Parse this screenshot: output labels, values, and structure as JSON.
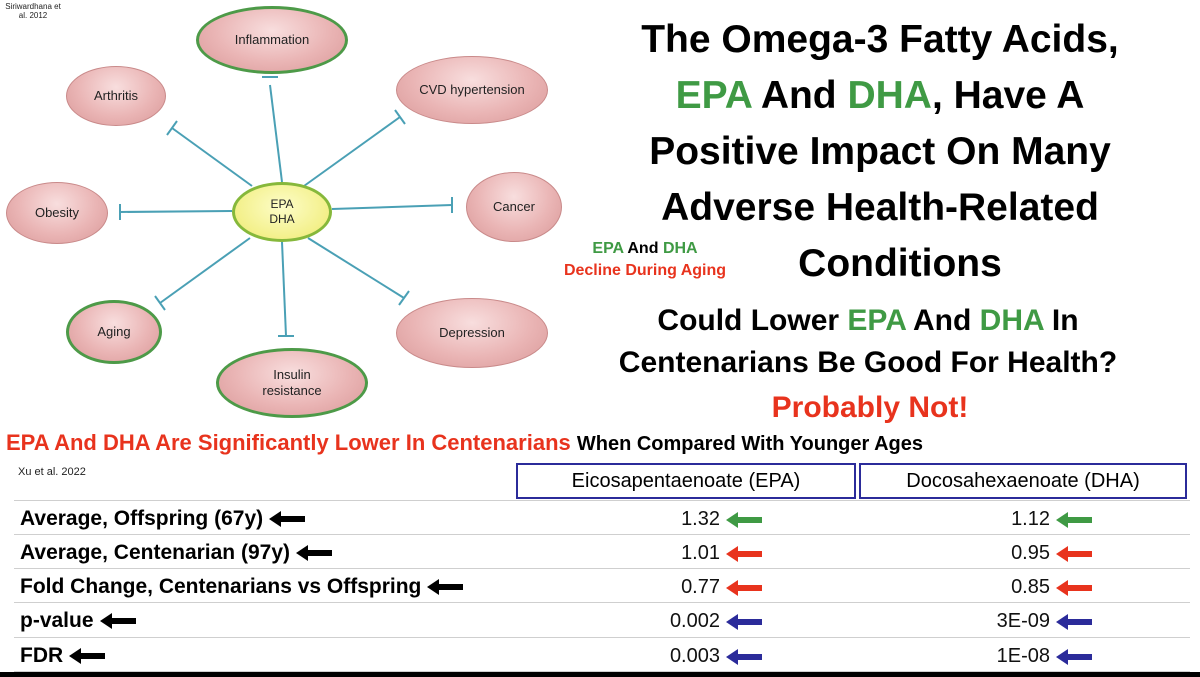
{
  "diagram": {
    "citation": "Siriwardhana et al. 2012",
    "center": [
      "EPA",
      "DHA"
    ],
    "nodes": {
      "inflammation": "Inflammation",
      "cvd": "CVD hypertension",
      "arthritis": "Arthritis",
      "cancer": "Cancer",
      "obesity": "Obesity",
      "depression": "Depression",
      "aging": "Aging",
      "insulin": "Insulin resistance"
    }
  },
  "title": {
    "line1": "The Omega-3 Fatty Acids,",
    "epa": "EPA",
    "and": "And",
    "dha": "DHA",
    "line2_rest": ", Have A",
    "line3": "Positive Impact On Many",
    "line4": "Adverse Health-Related",
    "line5": "Conditions"
  },
  "decline_note": {
    "epa": "EPA",
    "and": "And",
    "dha": "DHA",
    "decline": "Decline During Aging"
  },
  "question": {
    "part1": "Could Lower",
    "epa": "EPA",
    "and": "And",
    "dha": "DHA",
    "part2": "In",
    "line2": "Centenarians Be Good For Health?"
  },
  "answer": "Probably Not!",
  "headline": {
    "red": "EPA And DHA Are Significantly Lower In Centenarians",
    "black": "When Compared With Younger Ages"
  },
  "table": {
    "citation": "Xu et al. 2022",
    "columns": [
      "Eicosapentaenoate (EPA)",
      "Docosahexaenoate (DHA)"
    ],
    "rows": [
      {
        "label": "Average, Offspring (67y)",
        "epa": "1.32",
        "dha": "1.12",
        "arrow_color": "#3f9a44"
      },
      {
        "label": "Average, Centenarian (97y)",
        "epa": "1.01",
        "dha": "0.95",
        "arrow_color": "#e8331d"
      },
      {
        "label": "Fold Change, Centenarians vs Offspring",
        "epa": "0.77",
        "dha": "0.85",
        "arrow_color": "#e8331d"
      },
      {
        "label": "p-value",
        "epa": "0.002",
        "dha": "3E-09",
        "arrow_color": "#2b2b9a"
      },
      {
        "label": "FDR",
        "epa": "0.003",
        "dha": "1E-08",
        "arrow_color": "#2b2b9a"
      }
    ]
  }
}
